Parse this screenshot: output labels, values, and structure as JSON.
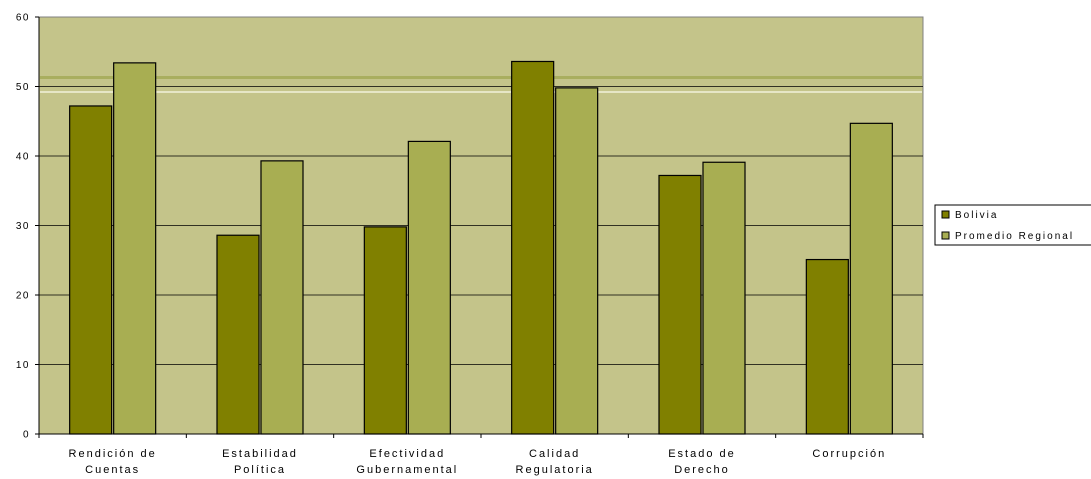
{
  "chart_data": {
    "type": "bar",
    "title": "",
    "xlabel": "",
    "ylabel": "",
    "ylim": [
      0,
      60
    ],
    "yticks": [
      "0",
      "10",
      "20",
      "30",
      "40",
      "50",
      "60"
    ],
    "categories": [
      [
        "Rendición de",
        "Cuentas"
      ],
      [
        "Estabilidad",
        "Política"
      ],
      [
        "Efectividad",
        "Gubernamental"
      ],
      [
        "Calidad",
        "Regulatoria"
      ],
      [
        "Estado de",
        "Derecho"
      ],
      [
        "Corrupción"
      ]
    ],
    "series": [
      {
        "name": "Bolivia",
        "color": "#808000",
        "values": [
          47.2,
          28.6,
          29.8,
          53.6,
          37.2,
          25.1
        ]
      },
      {
        "name": "Promedio Regional",
        "color": "#A8AE52",
        "values": [
          53.4,
          39.3,
          42.1,
          49.8,
          39.1,
          44.7
        ]
      }
    ],
    "grid": true,
    "legend_position": "right",
    "plot_background": "#C4C48A"
  }
}
